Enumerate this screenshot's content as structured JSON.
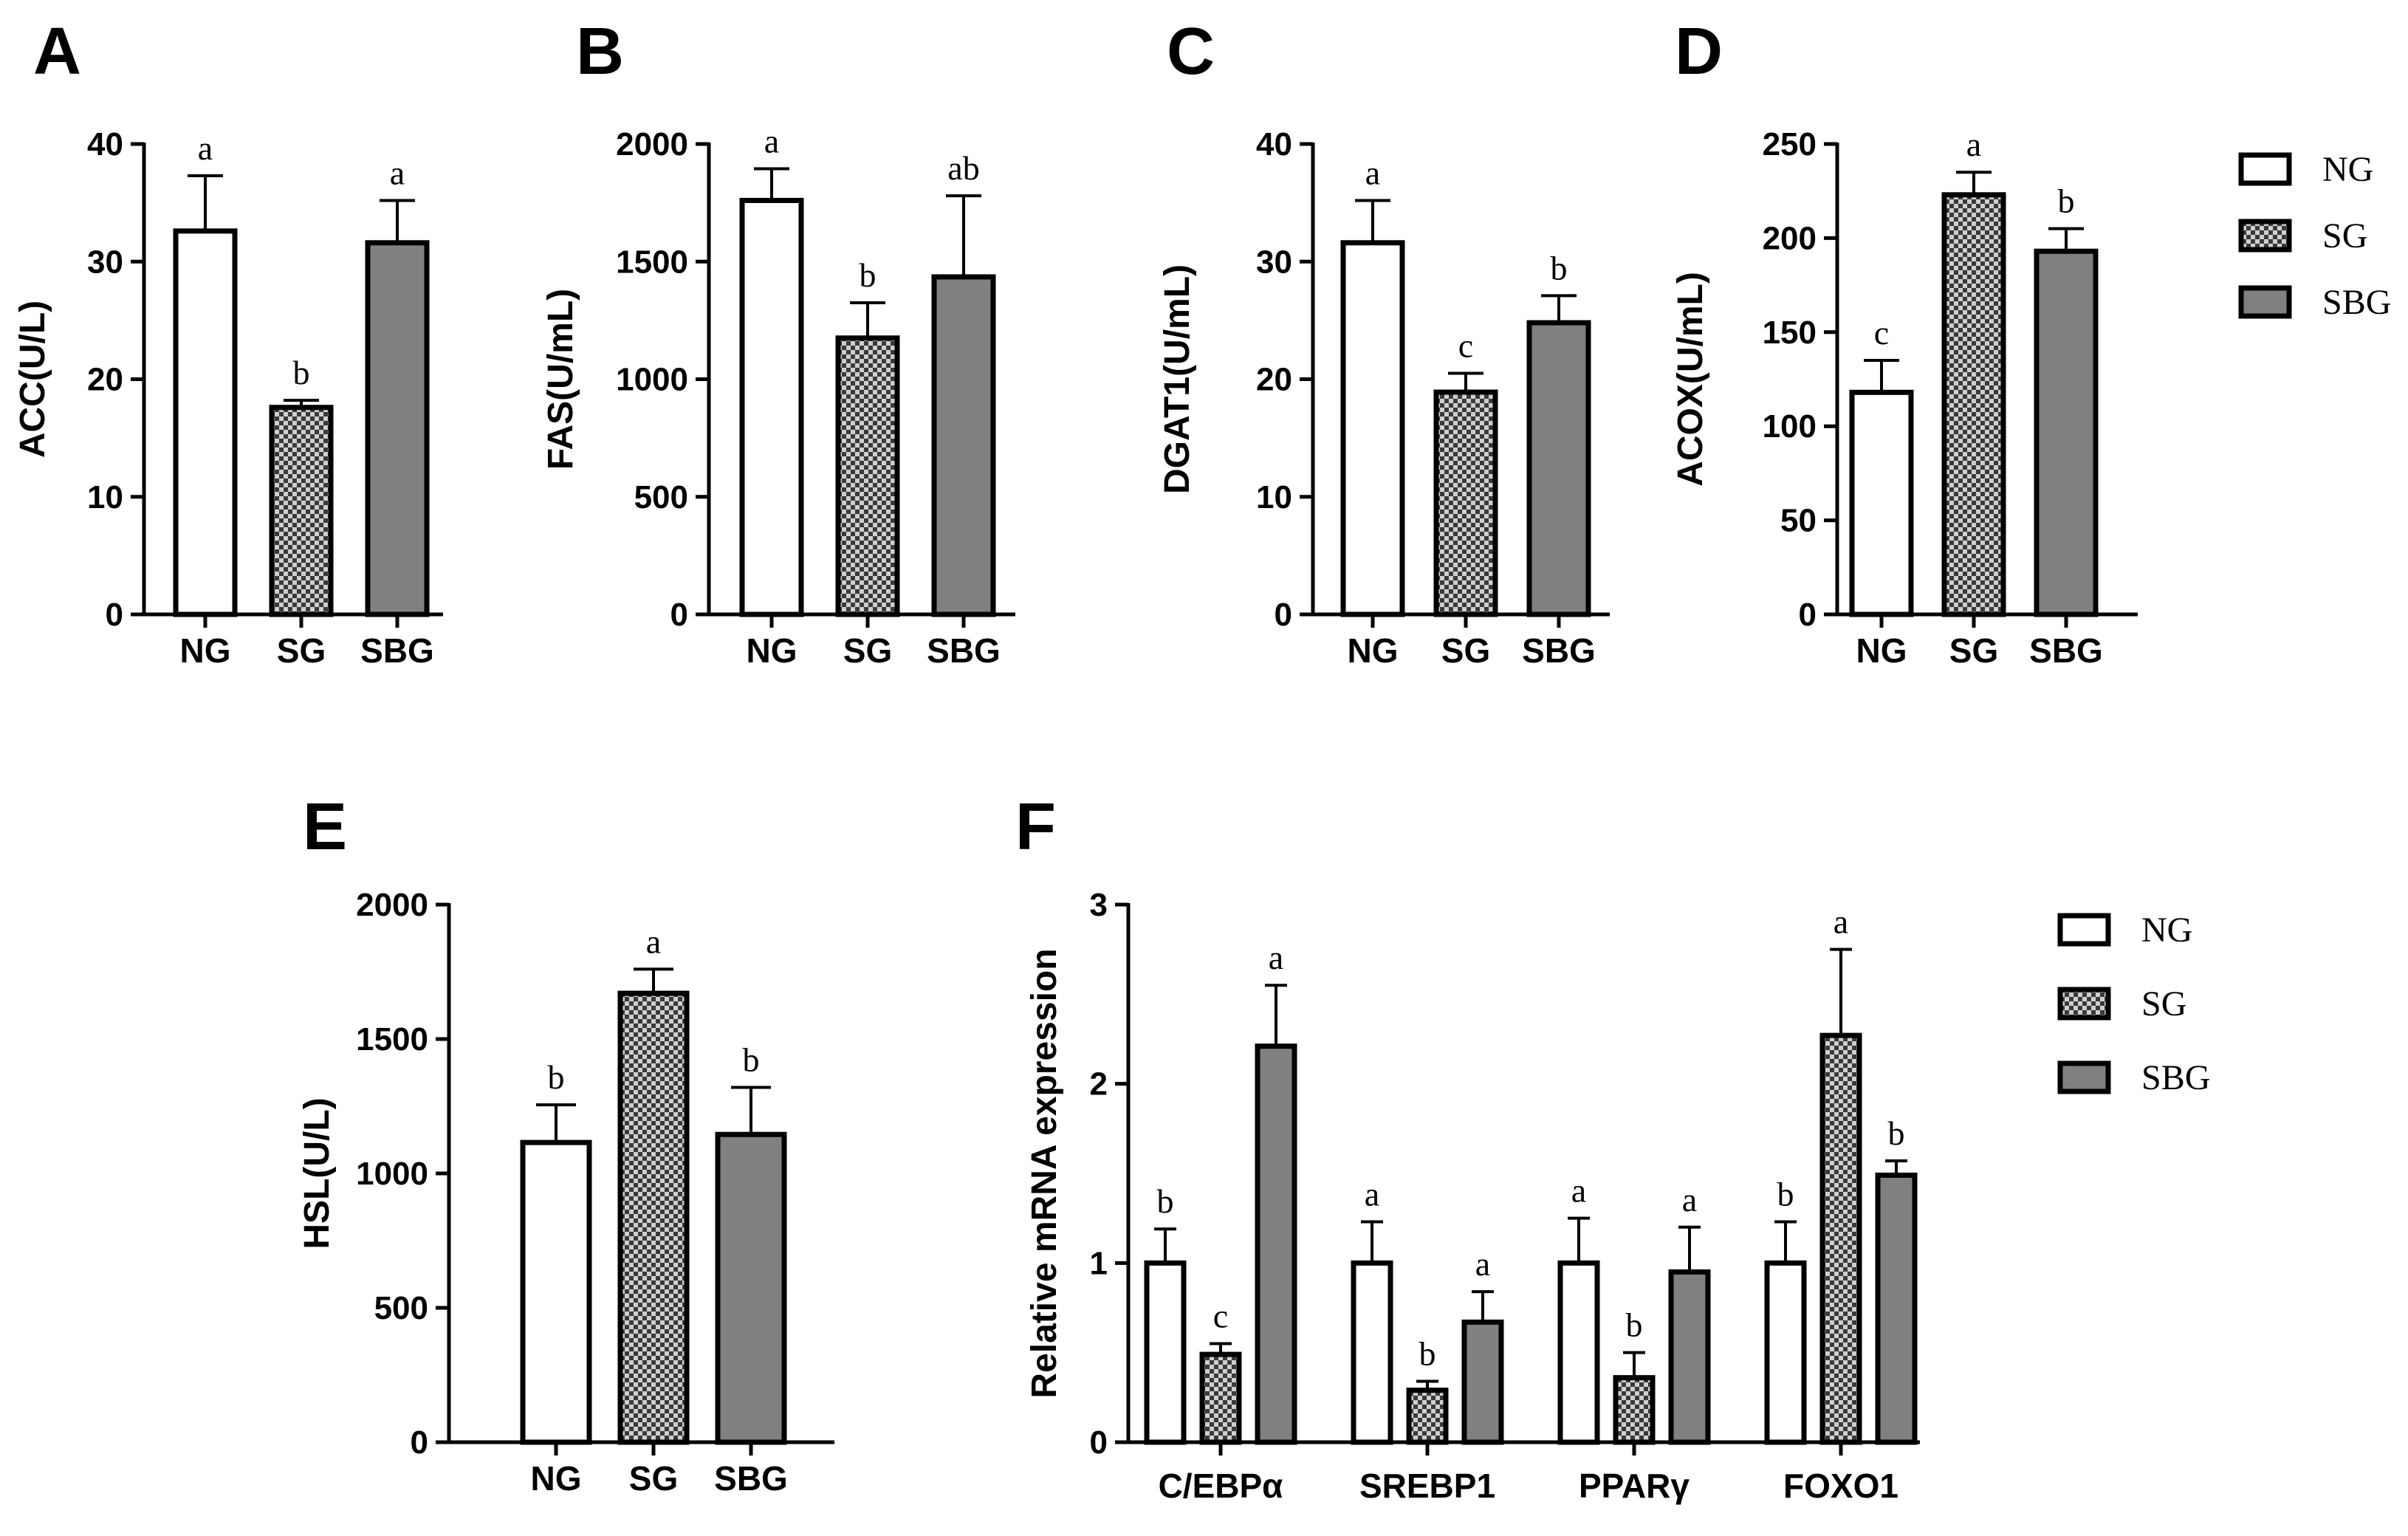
{
  "legend": [
    "NG",
    "SG",
    "SBG"
  ],
  "colors": {
    "NG": "#ffffff",
    "SG": "#3a3a3a",
    "SG_light": "#cfcfcf",
    "SBG": "#808080",
    "stroke": "#000000"
  },
  "chart_data": [
    {
      "panel": "A",
      "type": "bar",
      "ylabel": "ACC(U/L)",
      "ylim": [
        0,
        40
      ],
      "yticks": [
        0,
        10,
        20,
        30,
        40
      ],
      "categories": [
        "NG",
        "SG",
        "SBG"
      ],
      "values": [
        32.6,
        17.6,
        31.6
      ],
      "errors": [
        4.7,
        0.6,
        3.6
      ],
      "letters": [
        "a",
        "b",
        "a"
      ]
    },
    {
      "panel": "B",
      "type": "bar",
      "ylabel": "FAS(U/mL)",
      "ylim": [
        0,
        2000
      ],
      "yticks": [
        0,
        500,
        1000,
        1500,
        2000
      ],
      "categories": [
        "NG",
        "SG",
        "SBG"
      ],
      "values": [
        1760,
        1175,
        1435
      ],
      "errors": [
        135,
        150,
        345
      ],
      "letters": [
        "a",
        "b",
        "ab"
      ]
    },
    {
      "panel": "C",
      "type": "bar",
      "ylabel": "DGAT1(U/mL)",
      "ylim": [
        0,
        40
      ],
      "yticks": [
        0,
        10,
        20,
        30,
        40
      ],
      "categories": [
        "NG",
        "SG",
        "SBG"
      ],
      "values": [
        31.6,
        18.9,
        24.8
      ],
      "errors": [
        3.6,
        1.6,
        2.3
      ],
      "letters": [
        "a",
        "c",
        "b"
      ]
    },
    {
      "panel": "D",
      "type": "bar",
      "ylabel": "ACOX(U/mL)",
      "ylim": [
        0,
        250
      ],
      "yticks": [
        0,
        50,
        100,
        150,
        200,
        250
      ],
      "categories": [
        "NG",
        "SG",
        "SBG"
      ],
      "values": [
        118,
        223,
        193
      ],
      "errors": [
        17,
        12,
        12
      ],
      "letters": [
        "c",
        "a",
        "b"
      ]
    },
    {
      "panel": "E",
      "type": "bar",
      "ylabel": "HSL(U/L)",
      "ylim": [
        0,
        2000
      ],
      "yticks": [
        0,
        500,
        1000,
        1500,
        2000
      ],
      "categories": [
        "NG",
        "SG",
        "SBG"
      ],
      "values": [
        1115,
        1670,
        1145
      ],
      "errors": [
        140,
        90,
        175
      ],
      "letters": [
        "b",
        "a",
        "b"
      ]
    },
    {
      "panel": "F",
      "type": "bar",
      "ylabel": "Relative mRNA expression",
      "ylim": [
        0,
        3
      ],
      "yticks": [
        0,
        1,
        2,
        3
      ],
      "categories": [
        "C/EBPα",
        "SREBP1",
        "PPARγ",
        "FOXO1"
      ],
      "series": [
        {
          "name": "NG",
          "values": [
            1.0,
            1.0,
            1.0,
            1.0
          ],
          "errors": [
            0.19,
            0.23,
            0.25,
            0.23
          ],
          "letters": [
            "b",
            "a",
            "a",
            "b"
          ]
        },
        {
          "name": "SG",
          "values": [
            0.49,
            0.29,
            0.36,
            2.27
          ],
          "errors": [
            0.06,
            0.05,
            0.14,
            0.48
          ],
          "letters": [
            "c",
            "b",
            "b",
            "a"
          ]
        },
        {
          "name": "SBG",
          "values": [
            2.21,
            0.67,
            0.95,
            1.49
          ],
          "errors": [
            0.34,
            0.17,
            0.25,
            0.08
          ],
          "letters": [
            "a",
            "a",
            "a",
            "b"
          ]
        }
      ]
    }
  ]
}
